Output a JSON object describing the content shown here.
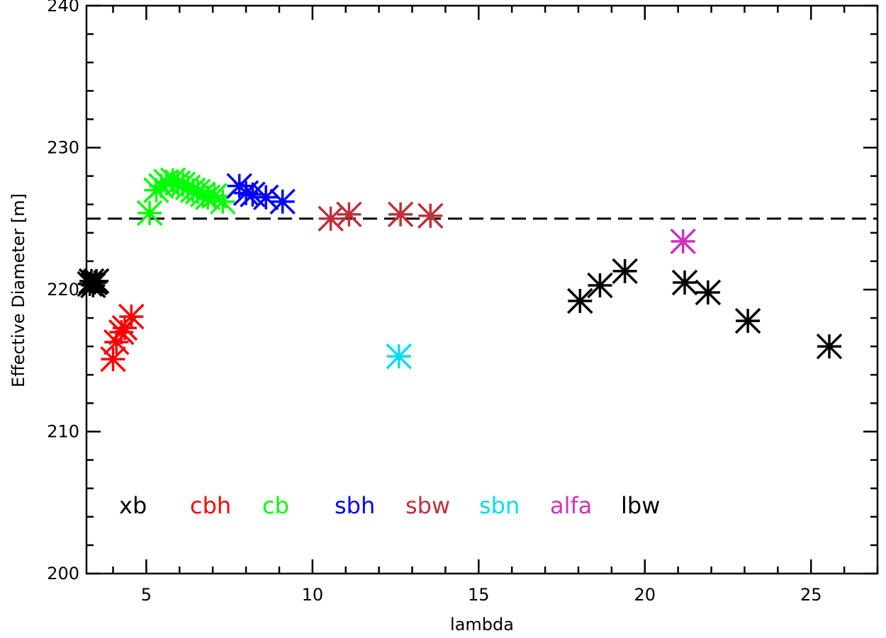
{
  "chart_data": {
    "type": "scatter",
    "xlabel": "lambda",
    "ylabel": "Effective Diameter [m]",
    "xlim": [
      3.2,
      27.0
    ],
    "ylim": [
      200,
      240
    ],
    "x_ticks": [
      5,
      10,
      15,
      20,
      25
    ],
    "y_ticks": [
      200,
      210,
      220,
      230,
      240
    ],
    "grid": false,
    "reference_line": {
      "y": 225,
      "style": "dashed",
      "color": "#000000"
    },
    "legend_position": "bottom-left",
    "series": [
      {
        "name": "xb",
        "color": "#000000",
        "x": [
          3.3,
          3.35,
          3.4,
          3.45,
          3.5
        ],
        "y": [
          220.4,
          220.6,
          220.3,
          220.5,
          220.6
        ]
      },
      {
        "name": "cbh",
        "color": "#ff0000",
        "x": [
          4.0,
          4.1,
          4.25,
          4.35,
          4.55
        ],
        "y": [
          215.1,
          216.3,
          217.0,
          217.3,
          218.1
        ]
      },
      {
        "name": "cb",
        "color": "#00ff00",
        "x": [
          5.1,
          5.3,
          5.45,
          5.6,
          5.8,
          5.95,
          6.1,
          6.25,
          6.4,
          6.55,
          6.7,
          6.85,
          7.05,
          7.3
        ],
        "y": [
          225.4,
          227.0,
          227.3,
          227.6,
          227.7,
          227.5,
          227.4,
          227.2,
          227.0,
          226.9,
          226.7,
          226.5,
          226.6,
          226.2
        ]
      },
      {
        "name": "sbh",
        "color": "#0000ff",
        "x": [
          7.8,
          8.0,
          8.2,
          8.6,
          9.1
        ],
        "y": [
          227.3,
          226.8,
          226.7,
          226.5,
          226.2
        ]
      },
      {
        "name": "sbw",
        "color": "#c0303a",
        "x": [
          10.55,
          11.1,
          12.65,
          13.55
        ],
        "y": [
          225.0,
          225.3,
          225.3,
          225.2
        ]
      },
      {
        "name": "sbn",
        "color": "#00ddee",
        "x": [
          12.6
        ],
        "y": [
          215.3
        ]
      },
      {
        "name": "alfa",
        "color": "#cc33bb",
        "x": [
          21.15
        ],
        "y": [
          223.4
        ]
      },
      {
        "name": "lbw",
        "color": "#000000",
        "x": [
          18.05,
          18.65,
          19.4,
          21.2,
          21.9,
          23.1,
          25.55
        ],
        "y": [
          219.2,
          220.3,
          221.3,
          220.5,
          219.8,
          217.8,
          216.0
        ]
      }
    ]
  }
}
